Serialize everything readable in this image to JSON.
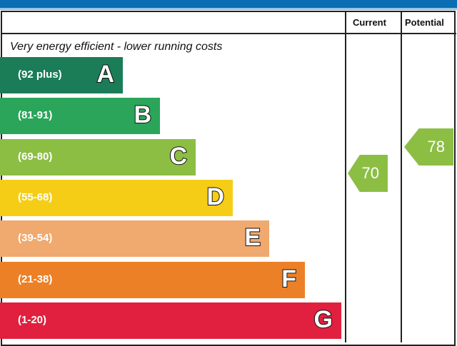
{
  "header": {
    "columns": [
      "Current",
      "Potential"
    ],
    "top_note": "Very energy efficient - lower running costs"
  },
  "chart_data": {
    "type": "bar",
    "categories": [
      "A",
      "B",
      "C",
      "D",
      "E",
      "F",
      "G"
    ],
    "ranges": [
      "(92 plus)",
      "(81-91)",
      "(69-80)",
      "(55-68)",
      "(39-54)",
      "(21-38)",
      "(1-20)"
    ],
    "colors": [
      "#1a7d57",
      "#2aa55a",
      "#8cbe44",
      "#f5cd16",
      "#f0a96e",
      "#ec8026",
      "#e0203e"
    ],
    "current": {
      "label": "Current",
      "value": 70,
      "band": "C",
      "color": "#8cbe44"
    },
    "potential": {
      "label": "Potential",
      "value": 78,
      "band": "C",
      "color": "#8cbe44"
    }
  }
}
